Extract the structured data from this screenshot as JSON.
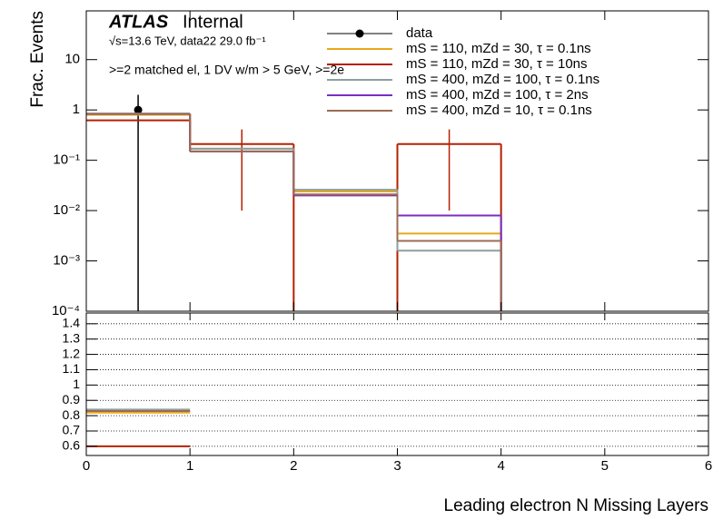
{
  "chart_data": [
    {
      "type": "histogram",
      "title": "ATLAS",
      "subtitle": "Internal",
      "annotations": [
        "√s=13.6 TeV, data22 29.0 fb⁻¹",
        ">=2 matched el, 1 DV w/m > 5 GeV, >=2e"
      ],
      "y_label": "Frac. Events",
      "log_y": true,
      "bins": [
        0,
        1,
        2,
        3,
        4,
        5,
        6
      ],
      "xlim": [
        0,
        6
      ],
      "xticks": [
        0,
        1,
        2,
        3,
        4,
        5,
        6
      ],
      "ylim": [
        0.0001,
        93
      ],
      "yticks": [
        {
          "value": 0.0001,
          "label": "10⁻⁴"
        },
        {
          "value": 0.001,
          "label": "10⁻³"
        },
        {
          "value": 0.01,
          "label": "10⁻²"
        },
        {
          "value": 0.1,
          "label": "10⁻¹"
        },
        1,
        10
      ],
      "series": [
        {
          "name": "data",
          "color": "#000000",
          "marker": "point",
          "values": [
            1,
            null,
            null,
            null,
            null,
            null
          ],
          "errors": [
            1,
            null,
            null,
            null,
            null,
            null
          ]
        },
        {
          "name": "mS = 110, mZd = 30, τ = 0.1ns",
          "color": "#e8a91a",
          "values": [
            0.8,
            0.17,
            0.024,
            0.0035,
            0,
            0
          ]
        },
        {
          "name": "mS = 110, mZd = 30, τ = 10ns",
          "color": "#b52000",
          "values": [
            0.62,
            0.21,
            0,
            0.21,
            0,
            0
          ],
          "errors": [
            null,
            0.2,
            null,
            0.2,
            null,
            null
          ]
        },
        {
          "name": "mS = 400, mZd = 100, τ = 0.1ns",
          "color": "#8e9fa0",
          "values": [
            0.85,
            0.17,
            0.026,
            0.0016,
            0,
            0
          ]
        },
        {
          "name": "mS = 400, mZd = 100, τ = 2ns",
          "color": "#7a2fc0",
          "values": [
            0.83,
            0.15,
            0.02,
            0.008,
            0,
            0
          ]
        },
        {
          "name": "mS = 400, mZd = 10, τ = 0.1ns",
          "color": "#9c6b52",
          "values": [
            0.83,
            0.15,
            0.021,
            0.0025,
            0,
            0
          ]
        }
      ]
    },
    {
      "type": "histogram",
      "x_label": "Leading electron N Missing Layers",
      "bins": [
        0,
        1,
        2,
        3,
        4,
        5,
        6
      ],
      "xlim": [
        0,
        6
      ],
      "xticks": [
        0,
        1,
        2,
        3,
        4,
        5,
        6
      ],
      "ylim": [
        0.54,
        1.47
      ],
      "yticks": [
        0.6,
        0.7,
        0.8,
        0.9,
        1,
        1.1,
        1.2,
        1.3,
        1.4
      ],
      "grid": true,
      "series": [
        {
          "color": "#e8a91a",
          "values": [
            0.82,
            null,
            null,
            null,
            null,
            null
          ]
        },
        {
          "color": "#b52000",
          "values": [
            0.6,
            null,
            null,
            null,
            null,
            null
          ]
        },
        {
          "color": "#8e9fa0",
          "values": [
            0.84,
            null,
            null,
            null,
            null,
            null
          ]
        },
        {
          "color": "#7a2fc0",
          "values": [
            0.83,
            null,
            null,
            null,
            null,
            null
          ]
        },
        {
          "color": "#9c6b52",
          "values": [
            0.83,
            null,
            null,
            null,
            null,
            null
          ]
        }
      ]
    }
  ]
}
